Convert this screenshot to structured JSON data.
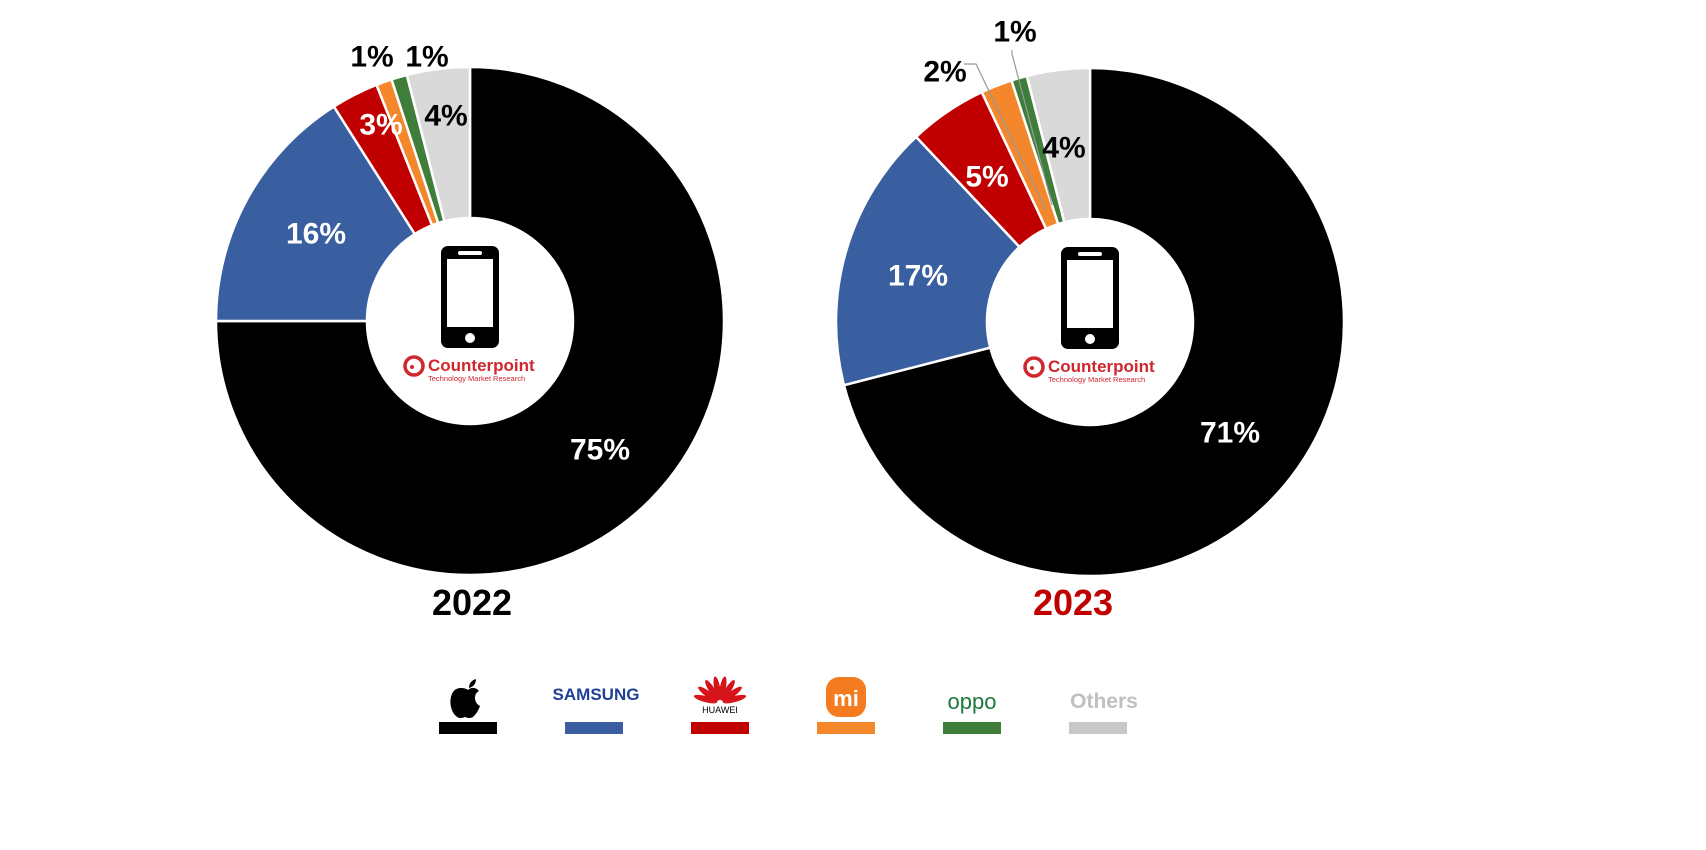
{
  "chart_data": [
    {
      "type": "pie",
      "variant": "donut",
      "title": "2022",
      "title_color": "#000000",
      "categories": [
        "Apple",
        "Samsung",
        "Huawei",
        "Xiaomi",
        "OPPO",
        "Others"
      ],
      "values": [
        75,
        16,
        3,
        1,
        1,
        4
      ],
      "labels": [
        "75%",
        "16%",
        "3%",
        "1%",
        "1%",
        "4%"
      ]
    },
    {
      "type": "pie",
      "variant": "donut",
      "title": "2023",
      "title_color": "#c00000",
      "categories": [
        "Apple",
        "Samsung",
        "Huawei",
        "Xiaomi",
        "OPPO",
        "Others"
      ],
      "values": [
        71,
        17,
        5,
        2,
        1,
        4
      ],
      "labels": [
        "71%",
        "17%",
        "5%",
        "2%",
        "1%",
        "4%"
      ]
    }
  ],
  "series_colors": [
    "#000000",
    "#3a5fa0",
    "#c00000",
    "#f4862b",
    "#3f7d3a",
    "#d9d9d9"
  ],
  "legend": {
    "placement": "bottom",
    "items": [
      {
        "name": "Apple",
        "icon": "apple-logo",
        "color": "#000000"
      },
      {
        "name": "SAMSUNG",
        "icon": "samsung-logo",
        "color": "#3a5fa0"
      },
      {
        "name": "HUAWEI",
        "icon": "huawei-logo",
        "color": "#c00000"
      },
      {
        "name": "mi",
        "icon": "xiaomi-logo",
        "color": "#f4862b"
      },
      {
        "name": "oppo",
        "icon": "oppo-logo",
        "color": "#3f7d3a"
      },
      {
        "name": "Others",
        "icon": "",
        "color": "#c8c8c8"
      }
    ]
  },
  "center_badge": {
    "icon": "smartphone-icon",
    "brand": "Counterpoint",
    "tagline": "Technology Market Research"
  }
}
